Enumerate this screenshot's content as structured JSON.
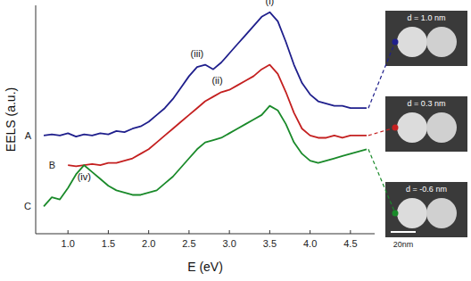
{
  "chart_data": {
    "type": "line",
    "x_label": "E (eV)",
    "y_label": "EELS (a.u.)",
    "x": [
      0.7,
      0.8,
      0.9,
      1.0,
      1.1,
      1.2,
      1.3,
      1.4,
      1.5,
      1.6,
      1.7,
      1.8,
      1.9,
      2.0,
      2.1,
      2.2,
      2.3,
      2.4,
      2.5,
      2.6,
      2.7,
      2.8,
      2.9,
      3.0,
      3.1,
      3.2,
      3.3,
      3.4,
      3.5,
      3.6,
      3.7,
      3.8,
      3.9,
      4.0,
      4.1,
      4.2,
      4.3,
      4.4,
      4.5,
      4.6,
      4.7
    ],
    "series": [
      {
        "name": "A",
        "color": "#1f1f8c",
        "values": [
          4.3,
          4.35,
          4.3,
          4.4,
          4.25,
          4.35,
          4.3,
          4.4,
          4.35,
          4.5,
          4.45,
          4.6,
          4.7,
          4.9,
          5.2,
          5.5,
          5.9,
          6.4,
          6.9,
          7.3,
          7.4,
          7.2,
          7.5,
          7.9,
          8.3,
          8.7,
          9.1,
          9.5,
          9.7,
          9.3,
          8.4,
          7.4,
          6.6,
          6.1,
          5.8,
          5.7,
          5.6,
          5.6,
          5.5,
          5.5,
          5.5
        ]
      },
      {
        "name": "B",
        "color": "#c42020",
        "values": [
          null,
          null,
          null,
          3.0,
          2.95,
          3.0,
          3.05,
          3.0,
          3.1,
          3.1,
          3.2,
          3.3,
          3.5,
          3.7,
          4.0,
          4.3,
          4.6,
          4.9,
          5.2,
          5.5,
          5.8,
          6.0,
          6.2,
          6.3,
          6.5,
          6.7,
          6.9,
          7.2,
          7.4,
          7.0,
          6.2,
          5.3,
          4.6,
          4.3,
          4.2,
          4.2,
          4.3,
          4.2,
          4.3,
          4.3,
          4.3
        ]
      },
      {
        "name": "C",
        "color": "#1a8a2a",
        "values": [
          1.2,
          1.6,
          1.5,
          2.0,
          2.6,
          3.0,
          2.7,
          2.4,
          2.1,
          1.9,
          1.8,
          1.7,
          1.7,
          1.8,
          1.9,
          2.2,
          2.5,
          2.9,
          3.3,
          3.7,
          4.0,
          4.1,
          4.2,
          4.4,
          4.6,
          4.8,
          5.0,
          5.2,
          5.6,
          5.4,
          4.8,
          4.0,
          3.5,
          3.2,
          3.1,
          3.2,
          3.3,
          3.4,
          3.5,
          3.6,
          3.7
        ]
      }
    ],
    "xlim": [
      0.6,
      4.8
    ],
    "xticks": [
      {
        "value": 1.0,
        "label": "1.0"
      },
      1.5,
      {
        "value": 2.0,
        "label": "2.0"
      },
      2.5,
      {
        "value": 3.0,
        "label": "3.0"
      },
      3.5,
      {
        "value": 4.0,
        "label": "4.0"
      },
      4.5
    ],
    "ylim": [
      0,
      10
    ],
    "tick_labels": "x",
    "annotations": [
      {
        "text": "(i)",
        "x": 3.5,
        "y": 10.05
      },
      {
        "text": "(ii)",
        "x": 2.85,
        "y": 6.55
      },
      {
        "text": "(iii)",
        "x": 2.6,
        "y": 7.75
      },
      {
        "text": "(iv)",
        "x": 1.2,
        "y": 2.35
      }
    ],
    "insets": [
      {
        "label": "d = 1.0 nm",
        "series": 0
      },
      {
        "label": "d = 0.3 nm",
        "series": 1
      },
      {
        "label": "d = -0.6 nm",
        "series": 2
      }
    ],
    "scale_bar_label": "20nm"
  }
}
